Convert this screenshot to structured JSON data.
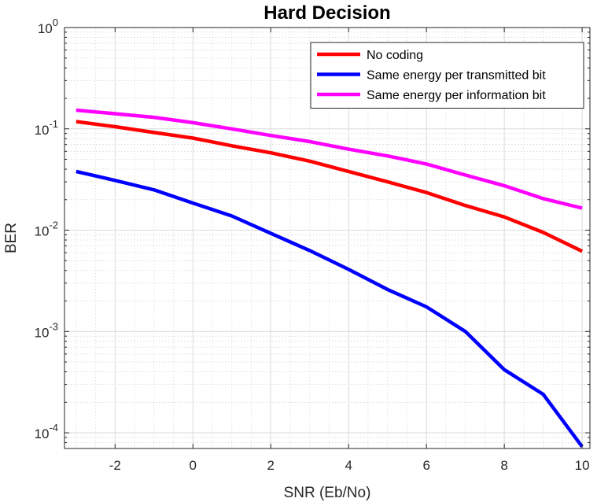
{
  "chart_data": {
    "type": "line",
    "title": "Hard Decision",
    "xlabel": "SNR (Eb/No)",
    "ylabel": "BER",
    "y_scale": "log",
    "xlim": [
      -3.3,
      10.2
    ],
    "ylim": [
      7e-05,
      1
    ],
    "x_ticks": [
      -2,
      0,
      2,
      4,
      6,
      8,
      10
    ],
    "y_ticks": [
      {
        "value": 1,
        "base": "10",
        "exp": "0"
      },
      {
        "value": 0.1,
        "base": "10",
        "exp": "-1"
      },
      {
        "value": 0.01,
        "base": "10",
        "exp": "-2"
      },
      {
        "value": 0.001,
        "base": "10",
        "exp": "-3"
      },
      {
        "value": 0.0001,
        "base": "10",
        "exp": "-4"
      }
    ],
    "grid": true,
    "minor_grid": true,
    "legend_position": "top-right",
    "x": [
      -3,
      -2,
      -1,
      0,
      1,
      2,
      3,
      4,
      5,
      6,
      7,
      8,
      9,
      10
    ],
    "series": [
      {
        "name": "No coding",
        "color": "#ff0000",
        "values": [
          0.118,
          0.105,
          0.092,
          0.081,
          0.068,
          0.058,
          0.048,
          0.038,
          0.03,
          0.0235,
          0.0175,
          0.0135,
          0.0095,
          0.0062
        ]
      },
      {
        "name": "Same energy per transmitted bit",
        "color": "#0000ff",
        "values": [
          0.038,
          0.031,
          0.025,
          0.0185,
          0.0138,
          0.0093,
          0.0063,
          0.0041,
          0.0026,
          0.00175,
          0.001,
          0.00042,
          0.00024,
          7.3e-05
        ]
      },
      {
        "name": "Same energy per information bit",
        "color": "#ff00ff",
        "values": [
          0.153,
          0.141,
          0.13,
          0.115,
          0.1,
          0.086,
          0.075,
          0.063,
          0.054,
          0.045,
          0.035,
          0.0275,
          0.0205,
          0.0165
        ]
      }
    ]
  }
}
